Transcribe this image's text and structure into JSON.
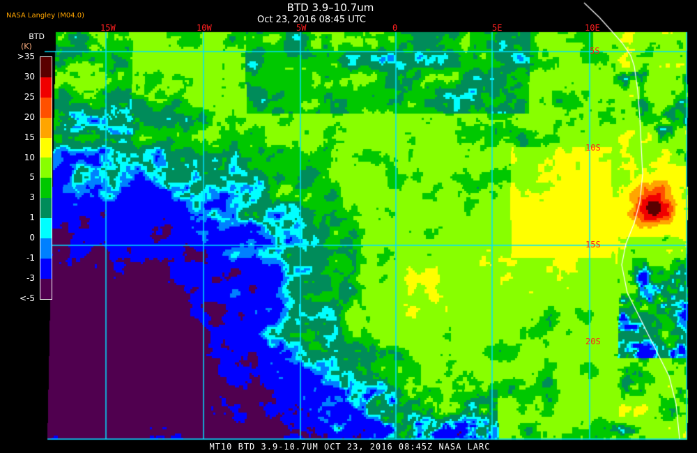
{
  "header": {
    "title": "BTD 3.9–10.7um",
    "datetime": "Oct 23, 2016 08:45 UTC",
    "organization": "NASA Langley (M04.0)"
  },
  "legend": {
    "title": "BTD",
    "units": "(K)",
    "ticks": [
      ">35",
      "30",
      "25",
      "20",
      "15",
      "10",
      "5",
      "3",
      "1",
      "0",
      "-1",
      "-3",
      "<-5"
    ],
    "colors": [
      "#5a0000",
      "#f00000",
      "#ff5000",
      "#ffa500",
      "#ffff00",
      "#88ff00",
      "#00c800",
      "#008c5a",
      "#00ffff",
      "#0080ff",
      "#0000ff",
      "#50004f"
    ]
  },
  "map": {
    "longitude_labels": [
      "15W",
      "10W",
      "5W",
      "0",
      "5E",
      "10E"
    ],
    "latitude_labels": [
      "5S",
      "10S",
      "15S",
      "20S"
    ],
    "gridline_color": "#00e0ff",
    "coastline_color": "#ffffff"
  },
  "footer": {
    "caption": "MT10  BTD 3.9-10.7UM   OCT 23, 2016 08:45Z   NASA LARC"
  }
}
